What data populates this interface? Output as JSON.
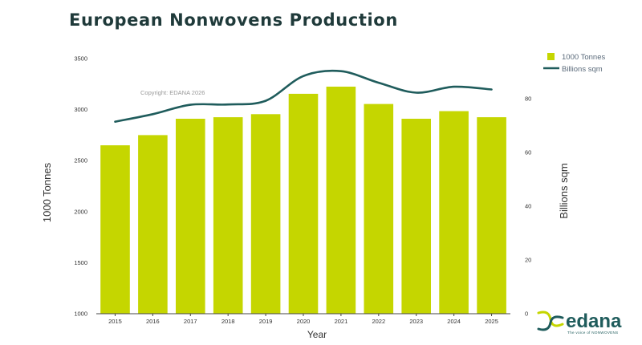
{
  "chart_data": {
    "type": "bar",
    "title": "European Nonwovens Production",
    "xlabel": "Year",
    "ylabel": "1000 Tonnes",
    "y2label": "Billions sqm",
    "annotation": "Copyright: EDANA 2026",
    "categories": [
      "2015",
      "2016",
      "2017",
      "2018",
      "2019",
      "2020",
      "2021",
      "2022",
      "2023",
      "2024",
      "2025"
    ],
    "ylim": [
      1000,
      3500
    ],
    "yticks": [
      "1000",
      "1500",
      "2000",
      "2500",
      "3000",
      "3500"
    ],
    "y2lim": [
      0,
      95
    ],
    "y2ticks": [
      "0",
      "20",
      "40",
      "60",
      "80"
    ],
    "series": [
      {
        "name": "1000 Tonnes",
        "type": "bar",
        "axis": "left",
        "color": "#c5d600",
        "values": [
          2650,
          2750,
          2910,
          2925,
          2955,
          3155,
          3225,
          3055,
          2910,
          2985,
          2925
        ]
      },
      {
        "name": "Billions sqm",
        "type": "line",
        "axis": "right",
        "color": "#1f5c5c",
        "values": [
          71.5,
          74.3,
          77.8,
          77.9,
          79.3,
          88.5,
          90.3,
          86.0,
          82.3,
          84.5,
          83.5
        ]
      }
    ],
    "legend": "top-right",
    "grid": false
  },
  "brand": {
    "name": "edana",
    "tagline": "The voice of NONWOVENS",
    "primary_color": "#1f5c5c",
    "accent_color": "#c5d600"
  }
}
